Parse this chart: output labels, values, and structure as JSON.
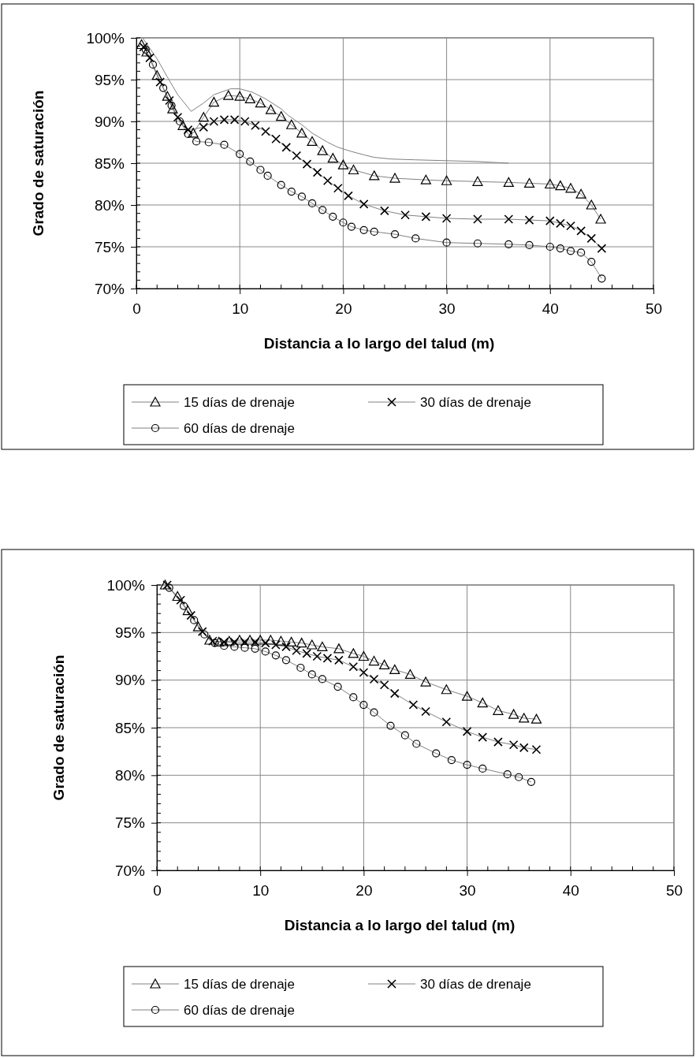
{
  "chart_data": [
    {
      "type": "line",
      "xlabel": "Distancia a lo largo del talud (m)",
      "ylabel": "Grado de saturación",
      "xlim": [
        0,
        50
      ],
      "xticks": [
        0,
        10,
        20,
        30,
        40,
        50
      ],
      "ylim": [
        70,
        100
      ],
      "yticks": [
        {
          "value": 70,
          "label": "70%"
        },
        {
          "value": 75,
          "label": "75%"
        },
        {
          "value": 80,
          "label": "80%"
        },
        {
          "value": 85,
          "label": "85%"
        },
        {
          "value": 90,
          "label": "90%"
        },
        {
          "value": 95,
          "label": "95%"
        },
        {
          "value": 100,
          "label": "100%"
        }
      ],
      "grid": true,
      "legend": "bottom",
      "series": [
        {
          "name": "15 días de drenaje",
          "color": "#000000",
          "marker": "triangle",
          "x": [
            0.5,
            1,
            2,
            3,
            3.5,
            4.5,
            5.5,
            6.5,
            7.5,
            8.9,
            10,
            11,
            12,
            13,
            14,
            15,
            16,
            17,
            18,
            19,
            20,
            21,
            23,
            25,
            28,
            30,
            33,
            36,
            38,
            40,
            41,
            42,
            43,
            44,
            44.9
          ],
          "values": [
            99.2,
            98.3,
            95.5,
            93,
            91.5,
            89.5,
            88.6,
            90.5,
            92.3,
            93.1,
            93,
            92.7,
            92.2,
            91.4,
            90.6,
            89.6,
            88.6,
            87.6,
            86.5,
            85.6,
            84.8,
            84.2,
            83.5,
            83.2,
            83,
            82.9,
            82.8,
            82.7,
            82.6,
            82.5,
            82.3,
            82,
            81.3,
            80,
            78.3
          ]
        },
        {
          "name": "30 días de drenaje",
          "color": "#000000",
          "marker": "cross",
          "x": [
            0.7,
            1.3,
            2.3,
            3.2,
            4,
            5,
            6.5,
            7.5,
            8.5,
            9.5,
            10.5,
            11.5,
            12.5,
            13.5,
            14.5,
            15.5,
            16.5,
            17.5,
            18.5,
            19.5,
            20.5,
            22,
            24,
            26,
            28,
            30,
            33,
            36,
            38,
            40,
            41,
            42,
            43,
            44,
            45
          ],
          "values": [
            98.9,
            97.6,
            94.7,
            92.5,
            90.5,
            89,
            89.3,
            90,
            90.2,
            90.2,
            90,
            89.5,
            88.8,
            87.9,
            86.9,
            85.9,
            84.9,
            83.9,
            82.9,
            82,
            81.1,
            80.1,
            79.3,
            78.8,
            78.6,
            78.4,
            78.3,
            78.3,
            78.2,
            78.1,
            77.8,
            77.5,
            76.9,
            76,
            74.8
          ]
        },
        {
          "name": "60 días de drenaje",
          "color": "#000000",
          "marker": "circle",
          "x": [
            0.9,
            1.6,
            2.6,
            3.4,
            4.2,
            5,
            5.8,
            7,
            8.5,
            10,
            11,
            12,
            12.7,
            14,
            15,
            16,
            17,
            18,
            19,
            20,
            20.8,
            22,
            23,
            25,
            27,
            30,
            33,
            36,
            38,
            40,
            41,
            42,
            43,
            44,
            45
          ],
          "values": [
            98.6,
            96.8,
            94,
            91.9,
            90,
            88.5,
            87.6,
            87.5,
            87.2,
            86.1,
            85.2,
            84.2,
            83.5,
            82.4,
            81.6,
            81,
            80.2,
            79.4,
            78.6,
            77.9,
            77.4,
            77,
            76.8,
            76.5,
            76,
            75.5,
            75.4,
            75.3,
            75.2,
            75,
            74.8,
            74.5,
            74.3,
            73.2,
            71.2
          ]
        },
        {
          "color": "#808080",
          "marker": "none",
          "x": [
            0.6,
            2,
            3,
            4,
            5.3,
            6.5,
            7.5,
            9.1,
            10,
            11.2,
            12.5,
            14,
            14.7,
            16,
            17,
            18.5,
            19.5,
            20.8,
            22,
            23,
            24.6,
            27,
            30,
            33,
            36
          ],
          "values": [
            100,
            97.5,
            95.3,
            93.2,
            91.2,
            92.2,
            93.2,
            93.9,
            93.9,
            93.5,
            92.7,
            91.5,
            90.7,
            89.6,
            88.6,
            87.5,
            86.9,
            86.4,
            86,
            85.7,
            85.5,
            85.4,
            85.3,
            85.2,
            85
          ]
        }
      ]
    },
    {
      "type": "line",
      "xlabel": "Distancia a lo largo del talud (m)",
      "ylabel": "Grado de saturación",
      "xlim": [
        0,
        50
      ],
      "xticks": [
        0,
        10,
        20,
        30,
        40,
        50
      ],
      "ylim": [
        70,
        100
      ],
      "yticks": [
        {
          "value": 70,
          "label": "70%"
        },
        {
          "value": 75,
          "label": "75%"
        },
        {
          "value": 80,
          "label": "80%"
        },
        {
          "value": 85,
          "label": "85%"
        },
        {
          "value": 90,
          "label": "90%"
        },
        {
          "value": 95,
          "label": "95%"
        },
        {
          "value": 100,
          "label": "100%"
        }
      ],
      "grid": true,
      "legend": "bottom",
      "series": [
        {
          "name": "15 días de drenaje",
          "color": "#000000",
          "marker": "triangle",
          "x": [
            0.8,
            2,
            3,
            4,
            5.1,
            6,
            7,
            8,
            9,
            10,
            11,
            12,
            13,
            14,
            15,
            16,
            17.6,
            19,
            20,
            21,
            22,
            23,
            24.5,
            26,
            28,
            30,
            31.5,
            33,
            34.5,
            35.5,
            36.7
          ],
          "values": [
            100,
            98.8,
            97.3,
            95.6,
            94.2,
            94,
            94.1,
            94.2,
            94.2,
            94.2,
            94.2,
            94.1,
            94,
            93.9,
            93.7,
            93.5,
            93.3,
            92.8,
            92.5,
            92,
            91.6,
            91.1,
            90.6,
            89.8,
            89,
            88.3,
            87.6,
            86.8,
            86.4,
            86,
            85.9
          ]
        },
        {
          "name": "30 días de drenaje",
          "color": "#000000",
          "marker": "cross",
          "x": [
            1,
            2.3,
            3.3,
            4.4,
            5.4,
            6.5,
            7.5,
            8.5,
            9.5,
            10.5,
            11.5,
            12.5,
            13.5,
            14.5,
            15.5,
            16.5,
            17.6,
            19,
            20,
            21,
            22,
            23,
            24.8,
            26,
            28,
            30,
            31.5,
            33,
            34.5,
            35.5,
            36.7
          ],
          "values": [
            100,
            98.4,
            96.8,
            95.1,
            94.1,
            94,
            94,
            94,
            94,
            93.9,
            93.7,
            93.5,
            93.1,
            92.8,
            92.5,
            92.3,
            92.1,
            91.4,
            90.8,
            90.1,
            89.5,
            88.6,
            87.4,
            86.7,
            85.6,
            84.6,
            84,
            83.5,
            83.2,
            82.9,
            82.7
          ]
        },
        {
          "name": "60 días de drenaje",
          "color": "#000000",
          "marker": "circle",
          "x": [
            1.2,
            2.6,
            3.6,
            4.6,
            5.6,
            6.5,
            7.5,
            8.5,
            9.5,
            10.5,
            11.5,
            12.5,
            13.9,
            15,
            16,
            17.5,
            19,
            20,
            21,
            22.6,
            24,
            25.1,
            27,
            28.5,
            30,
            31.5,
            33.9,
            35,
            36.2
          ],
          "values": [
            99.7,
            97.8,
            96.3,
            94.8,
            93.9,
            93.6,
            93.5,
            93.4,
            93.3,
            93,
            92.6,
            92.1,
            91.3,
            90.6,
            90.1,
            89.3,
            88.2,
            87.4,
            86.6,
            85.2,
            84.2,
            83.3,
            82.3,
            81.6,
            81.1,
            80.7,
            80.1,
            79.8,
            79.3
          ]
        }
      ]
    }
  ]
}
